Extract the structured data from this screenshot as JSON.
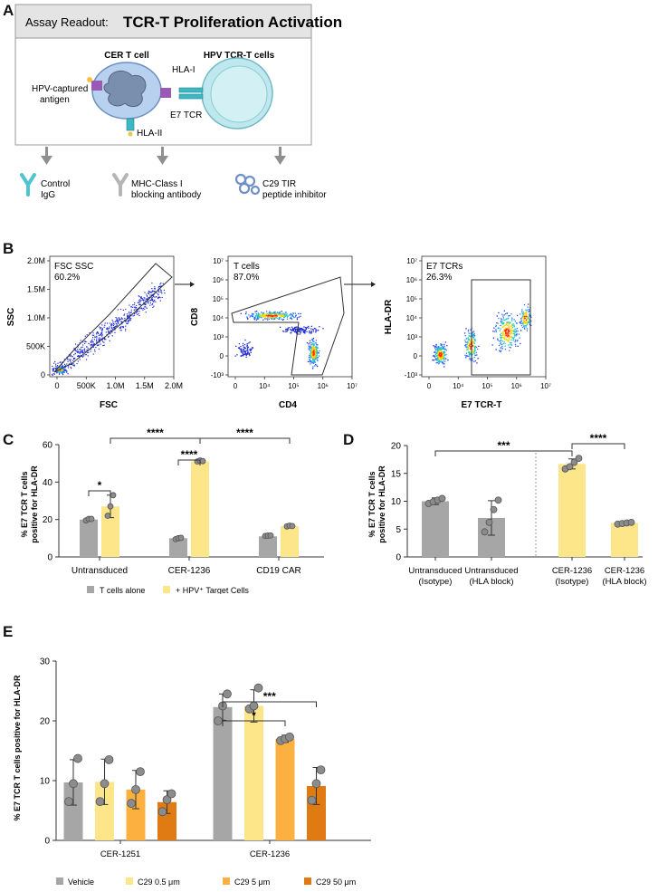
{
  "colors": {
    "grey_bar": "#a6a6a6",
    "yellow_bar": "#fde68a",
    "orange_bar": "#fbb040",
    "dark_orange_bar": "#e07b13",
    "point": "#8c8c8c",
    "cell_blue": "#b8d1ee",
    "cell_teal": "#bfe8ee",
    "header_bg": "#e4e4e4"
  },
  "panel_a": {
    "letter": "A",
    "header_prefix": "Assay Readout:",
    "header_title": "TCR-T Proliferation Activation",
    "cer_label": "CER T cell",
    "hpv_label": "HPV TCR-T cells",
    "antigen_label_1": "HPV-captured",
    "antigen_label_2": "antigen",
    "hla1_label": "HLA-I",
    "hla2_label": "HLA-II",
    "e7tcr_label": "E7 TCR",
    "treatments": [
      {
        "line1": "Control",
        "line2": "IgG",
        "icon": "antibody-icon"
      },
      {
        "line1": "MHC-Class I",
        "line2": "blocking antibody",
        "icon": "antibody-icon"
      },
      {
        "line1": "C29 TIR",
        "line2": "peptide inhibitor",
        "icon": "peptide-icon"
      }
    ]
  },
  "panel_b": {
    "letter": "B",
    "plots": [
      {
        "gate_line1": "FSC SSC",
        "gate_line2": "60.2%",
        "xlabel": "FSC",
        "ylabel": "SSC",
        "xticks": [
          "0",
          "500K",
          "1.0M",
          "1.5M",
          "2.0M"
        ],
        "yticks": [
          "0",
          "500K",
          "1.0M",
          "1.5M",
          "2.0M"
        ]
      },
      {
        "gate_line1": "T cells",
        "gate_line2": "87.0%",
        "xlabel": "CD4",
        "ylabel": "CD8",
        "xticks": [
          "0",
          "10⁴",
          "10⁵",
          "10⁶",
          "10⁷"
        ],
        "yticks": [
          "-10³",
          "0",
          "10³",
          "10⁴",
          "10⁵",
          "10⁶",
          "10⁷"
        ]
      },
      {
        "gate_line1": "E7 TCRs",
        "gate_line2": "26.3%",
        "xlabel": "E7 TCR-T",
        "ylabel": "HLA-DR",
        "xticks": [
          "0",
          "10⁴",
          "10⁵",
          "10⁶",
          "10⁷"
        ],
        "yticks": [
          "-10³",
          "0",
          "10³",
          "10⁴",
          "10⁵",
          "10⁶",
          "10⁷"
        ]
      }
    ]
  },
  "chart_data": [
    {
      "id": "C",
      "type": "bar",
      "ylabel_line1": "% E7 TCR T cells",
      "ylabel_line2": "positive for HLA-DR",
      "ylim": [
        0,
        60
      ],
      "yticks": [
        0,
        20,
        40,
        60
      ],
      "categories": [
        "Untransduced",
        "CER-1236",
        "CD19 CAR"
      ],
      "series": [
        {
          "name": "T cells alone",
          "values": [
            20,
            10,
            11
          ],
          "points": [
            [
              19.5,
              20.3,
              20.3
            ],
            [
              9.5,
              10.0,
              10.2
            ],
            [
              11.2,
              11.4,
              11.5
            ]
          ],
          "err": [
            0.5,
            0.5,
            0.2
          ]
        },
        {
          "name": "+ HPV⁺ Target Cells",
          "values": [
            27,
            51,
            16.5
          ],
          "points": [
            [
              22,
              27,
              33
            ],
            [
              51,
              51.5,
              51.2
            ],
            [
              16.3,
              16.7,
              16.5
            ]
          ],
          "err": [
            6,
            0.5,
            0.3
          ]
        }
      ],
      "significance": [
        "*",
        "****",
        "****",
        "****"
      ],
      "legend": [
        "T cells alone",
        "+ HPV⁺ Target Cells"
      ]
    },
    {
      "id": "D",
      "type": "bar",
      "ylabel_line1": "% E7 TCR T cells",
      "ylabel_line2": "positive for HLA-DR",
      "ylim": [
        0,
        20
      ],
      "yticks": [
        0,
        5,
        10,
        15,
        20
      ],
      "categories": [
        {
          "line1": "Untransduced",
          "line2": "(Isotype)"
        },
        {
          "line1": "Untransduced",
          "line2": "(HLA block)"
        },
        {
          "line1": "CER-1236",
          "line2": "(Isotype)"
        },
        {
          "line1": "CER-1236",
          "line2": "(HLA block)"
        }
      ],
      "values": [
        10,
        7,
        16.7,
        6.1
      ],
      "err": [
        0.6,
        3.1,
        0.9,
        0.3
      ],
      "points": [
        [
          9.6,
          9.9,
          10.2,
          10.5
        ],
        [
          4.5,
          6.2,
          8.5,
          10.2
        ],
        [
          15.8,
          16.2,
          17.0,
          17.7
        ],
        [
          5.9,
          6.0,
          6.1,
          6.2
        ]
      ],
      "significance": [
        "***",
        "****"
      ]
    },
    {
      "id": "E",
      "type": "bar",
      "ylabel": "% E7 TCR T cells positive for HLA-DR",
      "ylim": [
        0,
        30
      ],
      "yticks": [
        0,
        10,
        20,
        30
      ],
      "categories": [
        "CER-1251",
        "CER-1236"
      ],
      "series": [
        {
          "name": "Vehicle",
          "values": [
            9.7,
            22.3
          ],
          "err": [
            3.8,
            2.2
          ],
          "points": [
            [
              6.5,
              9.5,
              13.7
            ],
            [
              20,
              22.5,
              24.5
            ]
          ]
        },
        {
          "name": "C29 0.5 μm",
          "values": [
            9.8,
            22.5
          ],
          "err": [
            3.8,
            2.7
          ],
          "points": [
            [
              6.5,
              9.5,
              13.5
            ],
            [
              22,
              22.5,
              25.5
            ]
          ]
        },
        {
          "name": "C29 5 μm",
          "values": [
            8.5,
            17
          ],
          "err": [
            3.2,
            0.6
          ],
          "points": [
            [
              6.2,
              8.5,
              11.5
            ],
            [
              16.7,
              17,
              17.3
            ]
          ]
        },
        {
          "name": "C29 50 μm",
          "values": [
            6.4,
            9.1
          ],
          "err": [
            1.9,
            3.1
          ],
          "points": [
            [
              4.8,
              6.8,
              7.8
            ],
            [
              6.7,
              9.5,
              11.8
            ]
          ]
        }
      ],
      "significance": [
        "*",
        "***"
      ],
      "legend": [
        "Vehicle",
        "C29 0.5 μm",
        "C29 5 μm",
        "C29 50 μm"
      ]
    }
  ]
}
